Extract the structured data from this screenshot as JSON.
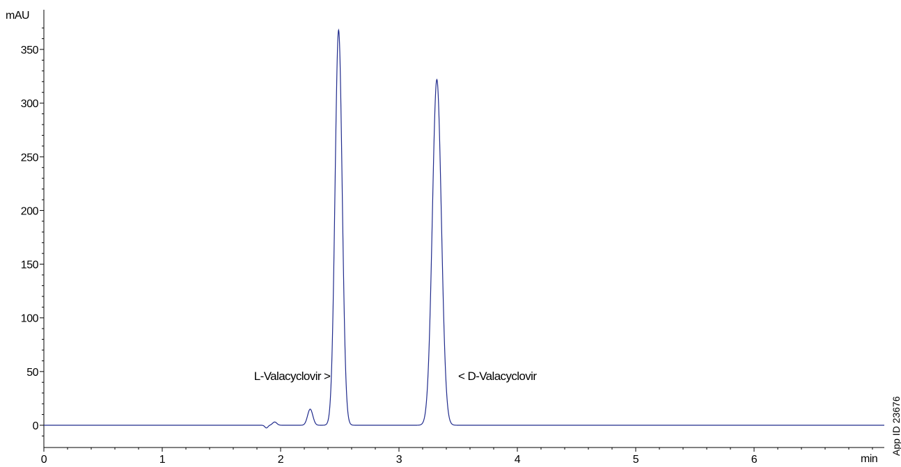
{
  "chart_data": {
    "type": "line",
    "xlabel": "min",
    "ylabel": "mAU",
    "xlim": [
      0,
      7.1
    ],
    "ylim": [
      -20,
      380
    ],
    "x_ticks": [
      0,
      1,
      2,
      3,
      4,
      5,
      6
    ],
    "y_ticks": [
      0,
      50,
      100,
      150,
      200,
      250,
      300,
      350
    ],
    "x_minor_step": 0.2,
    "y_minor_step": 10,
    "grid": false,
    "series": [
      {
        "color": "#1f2a8c",
        "baseline": 0,
        "peaks": [
          {
            "x": 1.88,
            "height": -2.5,
            "sigma": 0.013
          },
          {
            "x": 1.95,
            "height": 3,
            "sigma": 0.018
          },
          {
            "x": 2.25,
            "height": 15,
            "sigma": 0.022
          },
          {
            "x": 2.49,
            "height": 368,
            "sigma": 0.03
          },
          {
            "x": 3.32,
            "height": 322,
            "sigma": 0.038
          }
        ]
      }
    ],
    "annotations": [
      {
        "text": "L-Valacyclovir  >",
        "x": 2.42,
        "y": 42,
        "anchor": "end"
      },
      {
        "text": "<  D-Valacyclovir",
        "x": 3.5,
        "y": 42,
        "anchor": "start"
      }
    ]
  },
  "watermark": "App ID 23676"
}
